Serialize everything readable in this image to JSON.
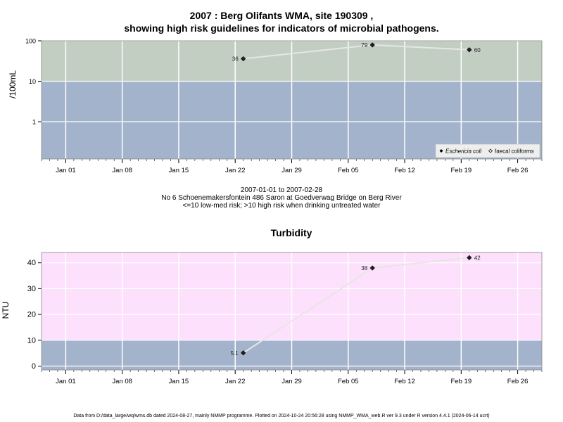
{
  "title_line1": "2007 : Berg Olifants WMA, site 190309 ,",
  "title_line2": "showing high risk guidelines for indicators of microbial pathogens.",
  "caption": {
    "line1": "2007-01-01 to 2007-02-28",
    "line2": "No 6 Schoenemakersfontein 486 Saron at Goedverwag Bridge on Berg River",
    "line3": "<=10 low-med risk; >10 high risk when drinking untreated water"
  },
  "footer": "Data from D:/data_large/wq/wms.db dated 2024-08-27, mainly NMMP programme. Plotted on 2024-10-24 20:56:28 using NMMP_WMA_web.R ver 9.3 under R version 4.4.1 (2024-06-14 ucrt)",
  "colors": {
    "high_risk_green": "#c2cec2",
    "low_risk_blue": "#a3b3cb",
    "turbidity_pink": "#fce0fc",
    "line": "#e6e6e6",
    "grid": "#ffffff"
  },
  "chart_data": [
    {
      "type": "line",
      "title": "",
      "ylabel": "/100mL",
      "y_scale": "log",
      "ylim": [
        0.12,
        100
      ],
      "y_ticks": [
        1,
        10,
        100
      ],
      "y_tick_labels": [
        "1",
        "10",
        "100"
      ],
      "x_ticks": [
        "2007-01-01",
        "2007-01-08",
        "2007-01-15",
        "2007-01-22",
        "2007-01-29",
        "2007-02-05",
        "2007-02-12",
        "2007-02-19",
        "2007-02-26"
      ],
      "x_tick_labels": [
        "Jan 01",
        "Jan 08",
        "Jan 15",
        "Jan 22",
        "Jan 29",
        "Feb 05",
        "Feb 12",
        "Feb 19",
        "Feb 26"
      ],
      "xlim": [
        "2006-12-29",
        "2007-03-01"
      ],
      "threshold": 10,
      "series": [
        {
          "name": "Eschericia coli",
          "x": [
            "2007-01-23",
            "2007-02-08",
            "2007-02-20"
          ],
          "y": [
            36,
            79,
            60
          ],
          "labels": [
            "36",
            "79",
            "60"
          ]
        }
      ],
      "legend": {
        "position": "bottom-right",
        "entries": [
          "Eschericia coli",
          "faecal coliforms"
        ]
      },
      "grid": true
    },
    {
      "type": "line",
      "title": "Turbidity",
      "ylabel": "NTU",
      "y_scale": "linear",
      "ylim": [
        -1.5,
        44
      ],
      "y_ticks": [
        0,
        10,
        20,
        30,
        40
      ],
      "y_tick_labels": [
        "0",
        "10",
        "20",
        "30",
        "40"
      ],
      "x_ticks": [
        "2007-01-01",
        "2007-01-08",
        "2007-01-15",
        "2007-01-22",
        "2007-01-29",
        "2007-02-05",
        "2007-02-12",
        "2007-02-19",
        "2007-02-26"
      ],
      "x_tick_labels": [
        "Jan 01",
        "Jan 08",
        "Jan 15",
        "Jan 22",
        "Jan 29",
        "Feb 05",
        "Feb 12",
        "Feb 19",
        "Feb 26"
      ],
      "xlim": [
        "2006-12-29",
        "2007-03-01"
      ],
      "threshold": 10,
      "series": [
        {
          "name": "",
          "x": [
            "2007-01-23",
            "2007-02-08",
            "2007-02-20"
          ],
          "y": [
            5.1,
            38,
            42
          ],
          "labels": [
            "5.1",
            "38",
            "42"
          ]
        }
      ],
      "grid": true
    }
  ]
}
